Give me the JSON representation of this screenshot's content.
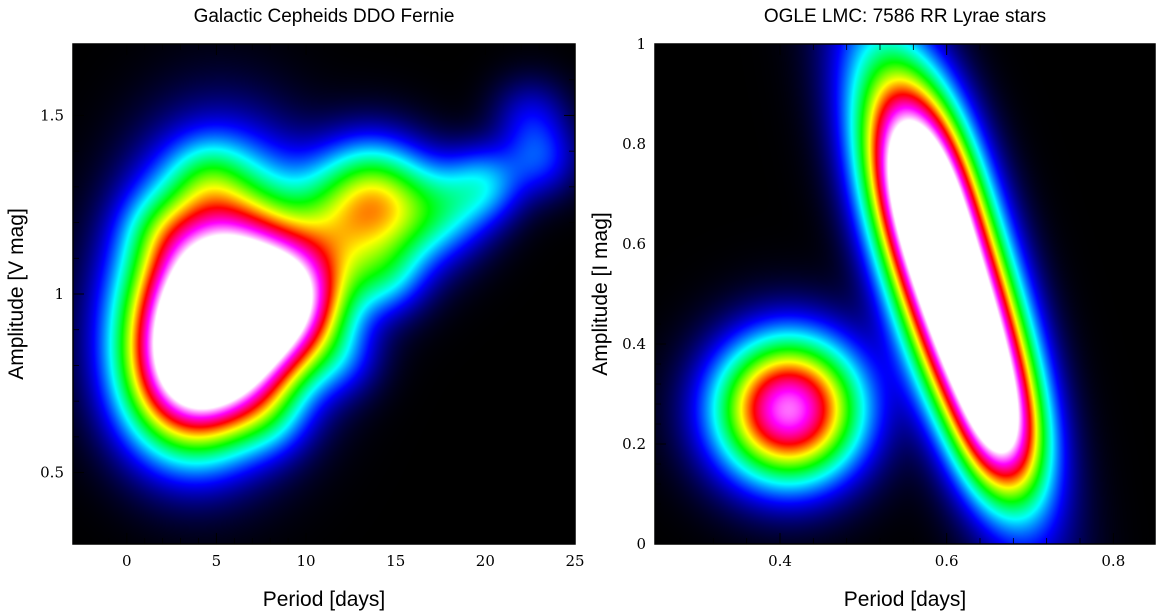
{
  "chart_data": [
    {
      "type": "heatmap",
      "title": "Galactic Cepheids DDO Fernie",
      "xlabel": "Period [days]",
      "ylabel": "Amplitude [V mag]",
      "xlim": [
        -3,
        25
      ],
      "ylim": [
        0.3,
        1.7
      ],
      "xticks": [
        0,
        5,
        10,
        15,
        20,
        25
      ],
      "yticks": [
        0.5,
        1,
        1.5
      ],
      "xtick_labels": [
        "0",
        "5",
        "10",
        "15",
        "20",
        "25"
      ],
      "ytick_labels": [
        "0.5",
        "1",
        "1.5"
      ],
      "colormap": [
        "#000000",
        "#0000ff",
        "#00ffff",
        "#00ff00",
        "#ffff00",
        "#ff0000",
        "#ff00ff",
        "#ffffff"
      ],
      "density_peaks": [
        {
          "x": 5.2,
          "y": 1.02,
          "intensity": 1.0
        },
        {
          "x": 3.8,
          "y": 0.9,
          "intensity": 0.55
        },
        {
          "x": 3.2,
          "y": 0.76,
          "intensity": 0.5
        },
        {
          "x": 5.8,
          "y": 0.83,
          "intensity": 0.4
        },
        {
          "x": 7.0,
          "y": 0.95,
          "intensity": 0.4
        },
        {
          "x": 8.5,
          "y": 1.0,
          "intensity": 0.38
        },
        {
          "x": 9.7,
          "y": 0.98,
          "intensity": 0.35
        },
        {
          "x": 12.0,
          "y": 1.17,
          "intensity": 0.34
        },
        {
          "x": 13.8,
          "y": 1.29,
          "intensity": 0.3
        },
        {
          "x": 15.5,
          "y": 1.2,
          "intensity": 0.2
        },
        {
          "x": 18.0,
          "y": 1.25,
          "intensity": 0.16
        },
        {
          "x": 20.0,
          "y": 1.31,
          "intensity": 0.16
        },
        {
          "x": 23.0,
          "y": 1.38,
          "intensity": 0.12
        },
        {
          "x": 22.5,
          "y": 1.5,
          "intensity": 0.08
        },
        {
          "x": 14.5,
          "y": 1.05,
          "intensity": 0.12
        },
        {
          "x": 12.0,
          "y": 0.82,
          "intensity": 0.08
        },
        {
          "x": 8.0,
          "y": 0.65,
          "intensity": 0.08
        },
        {
          "x": 4.5,
          "y": 1.33,
          "intensity": 0.1
        },
        {
          "x": 1.8,
          "y": 1.18,
          "intensity": 0.08
        }
      ]
    },
    {
      "type": "heatmap",
      "title": "OGLE LMC: 7586 RR Lyrae stars",
      "xlabel": "Period [days]",
      "ylabel": "Amplitude [I mag]",
      "xlim": [
        0.25,
        0.85
      ],
      "ylim": [
        0,
        1
      ],
      "xticks": [
        0.4,
        0.6,
        0.8
      ],
      "yticks": [
        0,
        0.2,
        0.4,
        0.6,
        0.8,
        1
      ],
      "xtick_labels": [
        "0.4",
        "0.6",
        "0.8"
      ],
      "ytick_labels": [
        "0",
        "0.2",
        "0.4",
        "0.6",
        "0.8",
        "1"
      ],
      "colormap": [
        "#000000",
        "#0000ff",
        "#00ffff",
        "#00ff00",
        "#ffff00",
        "#ff0000",
        "#ff00ff",
        "#ffffff"
      ],
      "density_peaks": [
        {
          "x": 0.41,
          "y": 0.27,
          "intensity": 0.95
        },
        {
          "x": 0.6,
          "y": 0.55,
          "intensity": 0.8
        },
        {
          "x": 0.585,
          "y": 0.64,
          "intensity": 0.65
        },
        {
          "x": 0.62,
          "y": 0.45,
          "intensity": 0.6
        },
        {
          "x": 0.565,
          "y": 0.75,
          "intensity": 0.5
        },
        {
          "x": 0.645,
          "y": 0.33,
          "intensity": 0.5
        },
        {
          "x": 0.665,
          "y": 0.22,
          "intensity": 0.42
        }
      ]
    }
  ]
}
